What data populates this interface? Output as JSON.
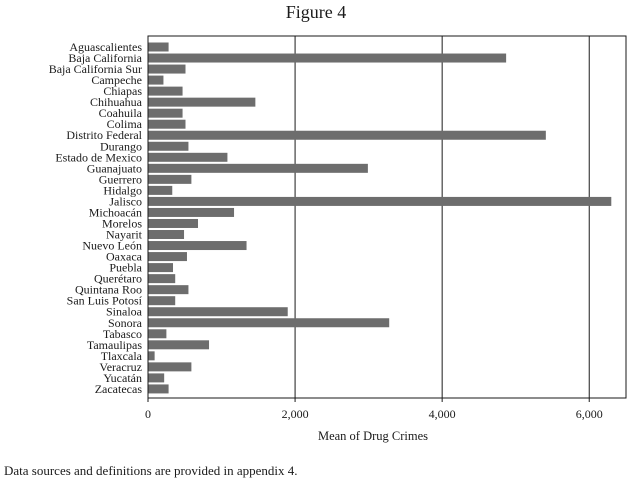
{
  "figure_title": "Figure 4",
  "footnote": "Data sources and definitions are provided in appendix 4.",
  "colors": {
    "bar": "#6d6d6d",
    "grid": "#1a1a1a",
    "frame": "#1a1a1a"
  },
  "chart_data": {
    "type": "bar",
    "orientation": "horizontal",
    "title": "Figure 4",
    "xlabel": "Mean of Drug Crimes",
    "ylabel": "",
    "xlim": [
      0,
      6500
    ],
    "xticks": [
      0,
      2000,
      4000,
      6000
    ],
    "xtick_labels": [
      "0",
      "2,000",
      "4,000",
      "6,000"
    ],
    "grid": "vertical",
    "categories": [
      "Aguascalientes",
      "Baja California",
      "Baja California Sur",
      "Campeche",
      "Chiapas",
      "Chihuahua",
      "Coahuila",
      "Colima",
      "Distrito Federal",
      "Durango",
      "Estado de Mexico",
      "Guanajuato",
      "Guerrero",
      "Hidalgo",
      "Jalisco",
      "Michoacán",
      "Morelos",
      "Nayarit",
      "Nuevo León",
      "Oaxaca",
      "Puebla",
      "Querétaro",
      "Quintana Roo",
      "San Luis Potosí",
      "Sinaloa",
      "Sonora",
      "Tabasco",
      "Tamaulipas",
      "Tlaxcala",
      "Veracruz",
      "Yucatán",
      "Zacatecas"
    ],
    "values": [
      280,
      4870,
      510,
      210,
      470,
      1460,
      470,
      510,
      5410,
      550,
      1080,
      2990,
      590,
      330,
      6300,
      1170,
      680,
      490,
      1340,
      530,
      340,
      370,
      550,
      370,
      1900,
      3280,
      250,
      830,
      90,
      590,
      220,
      280
    ]
  }
}
